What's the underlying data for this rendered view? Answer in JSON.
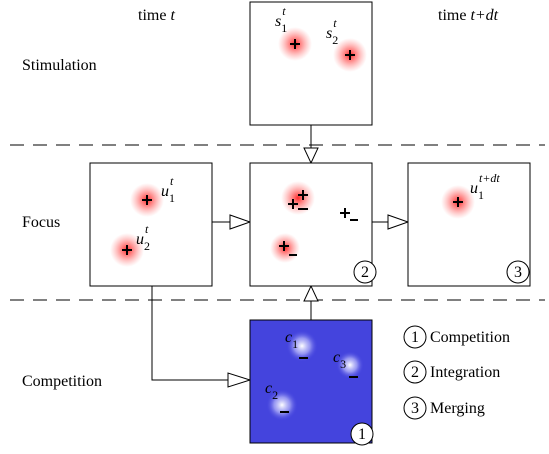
{
  "columns": [
    {
      "text": "time",
      "var": "t"
    },
    {
      "text": "time",
      "var": "t+dt"
    }
  ],
  "rows": [
    "Stimulation",
    "Focus",
    "Competition"
  ],
  "stimulation": [
    {
      "name": "s",
      "sub": "1",
      "sup": "t"
    },
    {
      "name": "s",
      "sub": "2",
      "sup": "t"
    }
  ],
  "focus_t": [
    {
      "name": "u",
      "sub": "1",
      "sup": "t"
    },
    {
      "name": "u",
      "sub": "2",
      "sup": "t"
    }
  ],
  "focus_t_dt": [
    {
      "name": "u",
      "sub": "1",
      "sup": "t+dt"
    }
  ],
  "competition": [
    {
      "name": "c",
      "sub": "1"
    },
    {
      "name": "c",
      "sub": "2"
    },
    {
      "name": "c",
      "sub": "3"
    }
  ],
  "legend": [
    {
      "num": "1",
      "label": "Competition"
    },
    {
      "num": "2",
      "label": "Integration"
    },
    {
      "num": "3",
      "label": "Merging"
    }
  ]
}
